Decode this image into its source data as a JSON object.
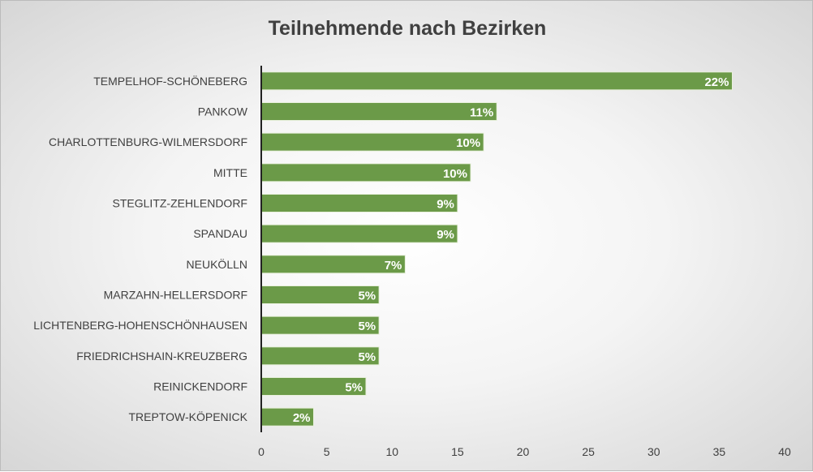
{
  "chart_data": {
    "type": "bar",
    "orientation": "horizontal",
    "title": "Teilnehmende nach Bezirken",
    "xlabel": "",
    "ylabel": "",
    "xlim": [
      0,
      40
    ],
    "xticks": [
      0,
      5,
      10,
      15,
      20,
      25,
      30,
      35,
      40
    ],
    "grid": "vertical",
    "legend": "none",
    "categories": [
      "TEMPELHOF-SCHÖNEBERG",
      "PANKOW",
      "CHARLOTTENBURG-WILMERSDORF",
      "MITTE",
      "STEGLITZ-ZEHLENDORF",
      "SPANDAU",
      "NEUKÖLLN",
      "MARZAHN-HELLERSDORF",
      "LICHTENBERG-HOHENSCHÖNHAUSEN",
      "FRIEDRICHSHAIN-KREUZBERG",
      "REINICKENDORF",
      "TREPTOW-KÖPENICK"
    ],
    "values": [
      36,
      18,
      17,
      16,
      15,
      15,
      11,
      9,
      9,
      9,
      8,
      4
    ],
    "data_labels": [
      "22%",
      "11%",
      "10%",
      "10%",
      "9%",
      "9%",
      "7%",
      "5%",
      "5%",
      "5%",
      "5%",
      "2%"
    ],
    "colors": {
      "bar": "#6b9a48",
      "bar_border": "#e8f0dc",
      "label": "#ffffff"
    }
  }
}
